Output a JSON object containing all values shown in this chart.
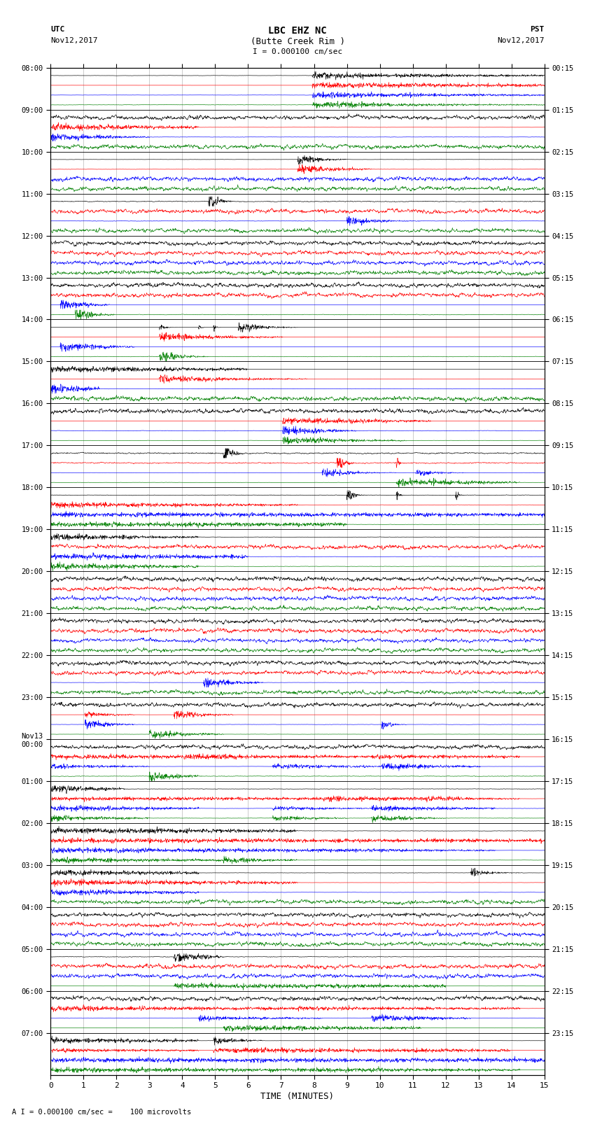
{
  "title_line1": "LBC EHZ NC",
  "title_line2": "(Butte Creek Rim )",
  "scale_label": "I = 0.000100 cm/sec",
  "bottom_label": "A I = 0.000100 cm/sec =    100 microvolts",
  "xlabel": "TIME (MINUTES)",
  "left_date_line1": "UTC",
  "left_date_line2": "Nov12,2017",
  "right_date_line1": "PST",
  "right_date_line2": "Nov12,2017",
  "left_times_utc": [
    "08:00",
    "09:00",
    "10:00",
    "11:00",
    "12:00",
    "13:00",
    "14:00",
    "15:00",
    "16:00",
    "17:00",
    "18:00",
    "19:00",
    "20:00",
    "21:00",
    "22:00",
    "23:00",
    "Nov13\n00:00",
    "01:00",
    "02:00",
    "03:00",
    "04:00",
    "05:00",
    "06:00",
    "07:00"
  ],
  "right_times_pst": [
    "00:15",
    "01:15",
    "02:15",
    "03:15",
    "04:15",
    "05:15",
    "06:15",
    "07:15",
    "08:15",
    "09:15",
    "10:15",
    "11:15",
    "12:15",
    "13:15",
    "14:15",
    "15:15",
    "16:15",
    "17:15",
    "18:15",
    "19:15",
    "20:15",
    "21:15",
    "22:15",
    "23:15"
  ],
  "num_hours": 24,
  "traces_per_hour": 4,
  "colors": [
    "black",
    "red",
    "blue",
    "green"
  ],
  "bg_color": "white",
  "figsize": [
    8.5,
    16.13
  ],
  "dpi": 100,
  "xticks": [
    0,
    1,
    2,
    3,
    4,
    5,
    6,
    7,
    8,
    9,
    10,
    11,
    12,
    13,
    14,
    15
  ],
  "xlim": [
    0,
    15
  ],
  "vertical_grid_positions": [
    1,
    2,
    3,
    4,
    5,
    6,
    7,
    8,
    9,
    10,
    11,
    12,
    13,
    14
  ]
}
